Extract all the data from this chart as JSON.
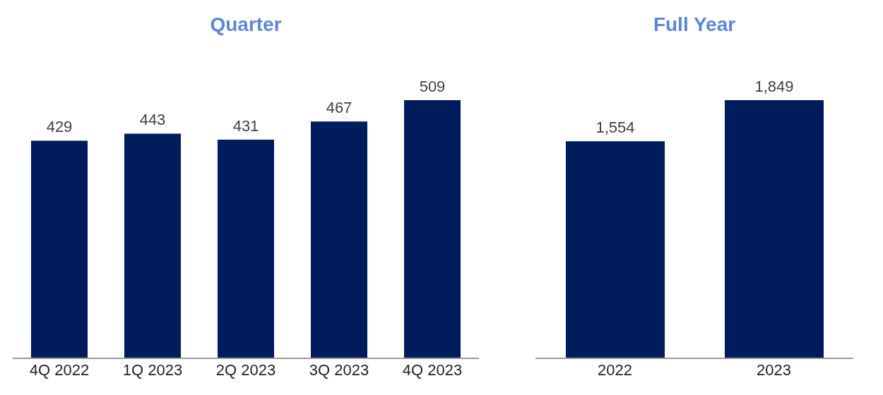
{
  "chart_data": [
    {
      "type": "bar",
      "title": "Quarter",
      "categories": [
        "4Q 2022",
        "1Q 2023",
        "2Q 2023",
        "3Q 2023",
        "4Q 2023"
      ],
      "values": [
        429,
        443,
        431,
        467,
        509
      ],
      "value_labels": [
        "429",
        "443",
        "431",
        "467",
        "509"
      ],
      "color": "#001c5c",
      "grid": false,
      "legend": false,
      "tick_labels": "x"
    },
    {
      "type": "bar",
      "title": "Full Year",
      "categories": [
        "2022",
        "2023"
      ],
      "values": [
        1554,
        1849
      ],
      "value_labels": [
        "1,554",
        "1,849"
      ],
      "color": "#001c5c",
      "grid": false,
      "legend": false,
      "tick_labels": "x"
    }
  ]
}
